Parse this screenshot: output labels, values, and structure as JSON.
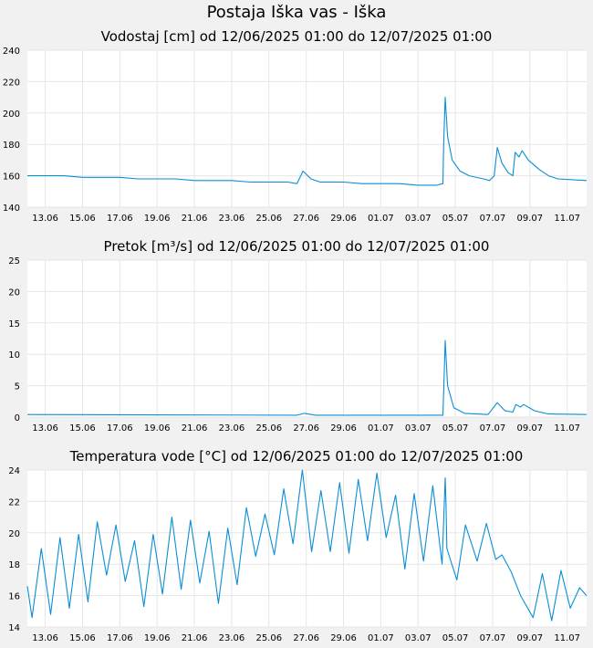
{
  "page_title": "Postaja Iška vas - Iška",
  "colors": {
    "line": "#0a8ed6",
    "grid": "#e6e6e6",
    "plot_bg": "#ffffff",
    "page_bg": "#f1f1f1"
  },
  "chart_data": [
    {
      "type": "line",
      "title": "Vodostaj [cm] od 12/06/2025 01:00 do 12/07/2025 01:00",
      "xlim": [
        "2025-06-12 01:00",
        "2025-07-12 01:00"
      ],
      "ylim": [
        140,
        240
      ],
      "yticks": [
        "140",
        "160",
        "180",
        "200",
        "220",
        "240"
      ],
      "xticks": [
        "13.06",
        "15.06",
        "17.06",
        "19.06",
        "21.06",
        "23.06",
        "25.06",
        "27.06",
        "29.06",
        "01.07",
        "03.07",
        "05.07",
        "07.07",
        "09.07",
        "11.07"
      ],
      "grid": true,
      "series": [
        {
          "points": [
            [
              "2025-06-12 01:00",
              160
            ],
            [
              "2025-06-13 00:00",
              160
            ],
            [
              "2025-06-14 00:00",
              160
            ],
            [
              "2025-06-15 00:00",
              159
            ],
            [
              "2025-06-16 00:00",
              159
            ],
            [
              "2025-06-17 00:00",
              159
            ],
            [
              "2025-06-18 00:00",
              158
            ],
            [
              "2025-06-19 00:00",
              158
            ],
            [
              "2025-06-20 00:00",
              158
            ],
            [
              "2025-06-21 00:00",
              157
            ],
            [
              "2025-06-22 00:00",
              157
            ],
            [
              "2025-06-23 00:00",
              157
            ],
            [
              "2025-06-24 00:00",
              156
            ],
            [
              "2025-06-25 00:00",
              156
            ],
            [
              "2025-06-26 00:00",
              156
            ],
            [
              "2025-06-26 12:00",
              155
            ],
            [
              "2025-06-26 20:00",
              163
            ],
            [
              "2025-06-27 06:00",
              158
            ],
            [
              "2025-06-27 18:00",
              156
            ],
            [
              "2025-06-29 00:00",
              156
            ],
            [
              "2025-06-30 00:00",
              155
            ],
            [
              "2025-07-01 00:00",
              155
            ],
            [
              "2025-07-02 00:00",
              155
            ],
            [
              "2025-07-03 00:00",
              154
            ],
            [
              "2025-07-04 00:00",
              154
            ],
            [
              "2025-07-04 08:00",
              155
            ],
            [
              "2025-07-04 09:00",
              180
            ],
            [
              "2025-07-04 11:00",
              210
            ],
            [
              "2025-07-04 14:00",
              185
            ],
            [
              "2025-07-04 20:00",
              170
            ],
            [
              "2025-07-05 06:00",
              163
            ],
            [
              "2025-07-05 18:00",
              160
            ],
            [
              "2025-07-06 12:00",
              158
            ],
            [
              "2025-07-06 20:00",
              157
            ],
            [
              "2025-07-07 02:00",
              160
            ],
            [
              "2025-07-07 06:00",
              178
            ],
            [
              "2025-07-07 12:00",
              168
            ],
            [
              "2025-07-07 20:00",
              162
            ],
            [
              "2025-07-08 02:00",
              160
            ],
            [
              "2025-07-08 05:00",
              175
            ],
            [
              "2025-07-08 10:00",
              172
            ],
            [
              "2025-07-08 14:00",
              176
            ],
            [
              "2025-07-08 22:00",
              170
            ],
            [
              "2025-07-09 12:00",
              164
            ],
            [
              "2025-07-10 00:00",
              160
            ],
            [
              "2025-07-10 12:00",
              158
            ],
            [
              "2025-07-12 01:00",
              157
            ]
          ]
        }
      ]
    },
    {
      "type": "line",
      "title": "Pretok [m³/s] od 12/06/2025 01:00 do 12/07/2025 01:00",
      "xlim": [
        "2025-06-12 01:00",
        "2025-07-12 01:00"
      ],
      "ylim": [
        0,
        25
      ],
      "yticks": [
        "0",
        "5",
        "10",
        "15",
        "20",
        "25"
      ],
      "xticks": [
        "13.06",
        "15.06",
        "17.06",
        "19.06",
        "21.06",
        "23.06",
        "25.06",
        "27.06",
        "29.06",
        "01.07",
        "03.07",
        "05.07",
        "07.07",
        "09.07",
        "11.07"
      ],
      "grid": true,
      "series": [
        {
          "points": [
            [
              "2025-06-12 01:00",
              0.4
            ],
            [
              "2025-06-19 00:00",
              0.35
            ],
            [
              "2025-06-26 12:00",
              0.3
            ],
            [
              "2025-06-26 22:00",
              0.6
            ],
            [
              "2025-06-27 12:00",
              0.3
            ],
            [
              "2025-07-04 08:00",
              0.3
            ],
            [
              "2025-07-04 09:00",
              4
            ],
            [
              "2025-07-04 11:00",
              12.2
            ],
            [
              "2025-07-04 14:00",
              5
            ],
            [
              "2025-07-04 22:00",
              1.5
            ],
            [
              "2025-07-05 12:00",
              0.6
            ],
            [
              "2025-07-06 18:00",
              0.4
            ],
            [
              "2025-07-07 06:00",
              2.3
            ],
            [
              "2025-07-07 16:00",
              1
            ],
            [
              "2025-07-08 02:00",
              0.8
            ],
            [
              "2025-07-08 06:00",
              2
            ],
            [
              "2025-07-08 12:00",
              1.6
            ],
            [
              "2025-07-08 16:00",
              2
            ],
            [
              "2025-07-09 06:00",
              1
            ],
            [
              "2025-07-10 00:00",
              0.5
            ],
            [
              "2025-07-12 01:00",
              0.4
            ]
          ]
        }
      ]
    },
    {
      "type": "line",
      "title": "Temperatura vode [°C] od 12/06/2025 01:00 do 12/07/2025 01:00",
      "xlim": [
        "2025-06-12 01:00",
        "2025-07-12 01:00"
      ],
      "ylim": [
        14,
        24
      ],
      "yticks": [
        "14",
        "16",
        "18",
        "20",
        "22",
        "24"
      ],
      "xticks": [
        "13.06",
        "15.06",
        "17.06",
        "19.06",
        "21.06",
        "23.06",
        "25.06",
        "27.06",
        "29.06",
        "01.07",
        "03.07",
        "05.07",
        "07.07",
        "09.07",
        "11.07"
      ],
      "grid": true,
      "series": [
        {
          "points": [
            [
              "2025-06-12 01:00",
              16.6
            ],
            [
              "2025-06-12 07:00",
              14.6
            ],
            [
              "2025-06-12 19:00",
              19.0
            ],
            [
              "2025-06-13 07:00",
              14.8
            ],
            [
              "2025-06-13 19:00",
              19.7
            ],
            [
              "2025-06-14 07:00",
              15.2
            ],
            [
              "2025-06-14 19:00",
              19.9
            ],
            [
              "2025-06-15 07:00",
              15.6
            ],
            [
              "2025-06-15 19:00",
              20.7
            ],
            [
              "2025-06-16 07:00",
              17.3
            ],
            [
              "2025-06-16 19:00",
              20.5
            ],
            [
              "2025-06-17 07:00",
              16.9
            ],
            [
              "2025-06-17 19:00",
              19.5
            ],
            [
              "2025-06-18 07:00",
              15.3
            ],
            [
              "2025-06-18 19:00",
              19.9
            ],
            [
              "2025-06-19 07:00",
              16.1
            ],
            [
              "2025-06-19 19:00",
              21.0
            ],
            [
              "2025-06-20 07:00",
              16.4
            ],
            [
              "2025-06-20 19:00",
              20.8
            ],
            [
              "2025-06-21 07:00",
              16.8
            ],
            [
              "2025-06-21 19:00",
              20.1
            ],
            [
              "2025-06-22 07:00",
              15.5
            ],
            [
              "2025-06-22 19:00",
              20.3
            ],
            [
              "2025-06-23 07:00",
              16.7
            ],
            [
              "2025-06-23 19:00",
              21.6
            ],
            [
              "2025-06-24 07:00",
              18.5
            ],
            [
              "2025-06-24 19:00",
              21.2
            ],
            [
              "2025-06-25 07:00",
              18.6
            ],
            [
              "2025-06-25 19:00",
              22.8
            ],
            [
              "2025-06-26 07:00",
              19.3
            ],
            [
              "2025-06-26 19:00",
              24.0
            ],
            [
              "2025-06-27 07:00",
              18.8
            ],
            [
              "2025-06-27 19:00",
              22.7
            ],
            [
              "2025-06-28 07:00",
              18.8
            ],
            [
              "2025-06-28 19:00",
              23.2
            ],
            [
              "2025-06-29 07:00",
              18.7
            ],
            [
              "2025-06-29 19:00",
              23.4
            ],
            [
              "2025-06-30 07:00",
              19.5
            ],
            [
              "2025-06-30 19:00",
              23.8
            ],
            [
              "2025-07-01 07:00",
              19.7
            ],
            [
              "2025-07-01 19:00",
              22.4
            ],
            [
              "2025-07-02 07:00",
              17.7
            ],
            [
              "2025-07-02 19:00",
              22.5
            ],
            [
              "2025-07-03 07:00",
              18.2
            ],
            [
              "2025-07-03 19:00",
              23.0
            ],
            [
              "2025-07-04 07:00",
              18.0
            ],
            [
              "2025-07-04 11:00",
              23.5
            ],
            [
              "2025-07-04 12:00",
              21.8
            ],
            [
              "2025-07-04 13:00",
              19.0
            ],
            [
              "2025-07-05 02:00",
              17.0
            ],
            [
              "2025-07-05 13:00",
              20.5
            ],
            [
              "2025-07-06 04:00",
              18.2
            ],
            [
              "2025-07-06 16:00",
              20.6
            ],
            [
              "2025-07-07 04:00",
              18.3
            ],
            [
              "2025-07-07 12:00",
              18.6
            ],
            [
              "2025-07-08 00:00",
              17.5
            ],
            [
              "2025-07-08 12:00",
              16.0
            ],
            [
              "2025-07-09 04:00",
              14.6
            ],
            [
              "2025-07-09 16:00",
              17.4
            ],
            [
              "2025-07-10 04:00",
              14.4
            ],
            [
              "2025-07-10 16:00",
              17.6
            ],
            [
              "2025-07-11 04:00",
              15.2
            ],
            [
              "2025-07-11 16:00",
              16.5
            ],
            [
              "2025-07-12 01:00",
              16.0
            ]
          ]
        }
      ]
    }
  ]
}
